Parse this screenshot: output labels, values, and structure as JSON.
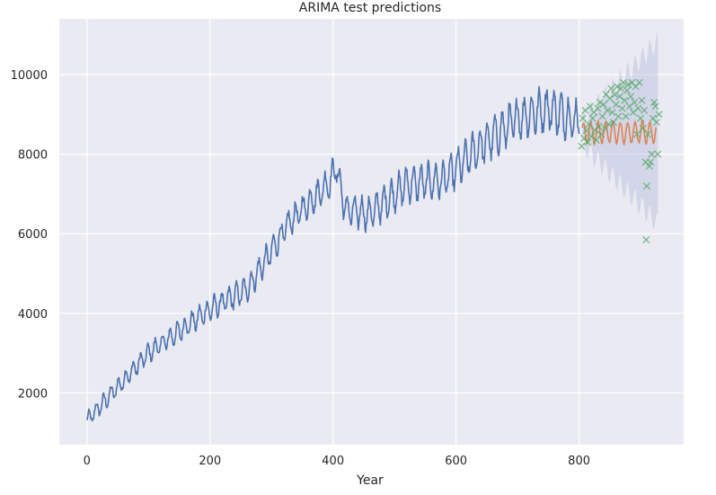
{
  "chart_data": {
    "type": "line",
    "title": "ARIMA test predictions",
    "xlabel": "Year",
    "ylabel": "",
    "xlim": [
      -45,
      970
    ],
    "ylim": [
      700,
      11400
    ],
    "x_ticks": [
      0,
      200,
      400,
      600,
      800
    ],
    "y_ticks": [
      2000,
      4000,
      6000,
      8000,
      10000
    ],
    "grid": true,
    "legend": "none",
    "colors": {
      "background": "#eaeaf2",
      "grid": "#ffffff",
      "history": "#4c72b0",
      "forecast": "#dd8452",
      "actual_test": "#55a868",
      "confidence_band": "#bfc5e0"
    },
    "series": [
      {
        "role": "history",
        "style": "line",
        "x_start": 0,
        "x_end": 800,
        "approx_trend": [
          [
            0,
            1300
          ],
          [
            100,
            3000
          ],
          [
            200,
            4100
          ],
          [
            260,
            4600
          ],
          [
            330,
            6300
          ],
          [
            395,
            7300
          ],
          [
            405,
            7700
          ],
          [
            420,
            6600
          ],
          [
            460,
            6500
          ],
          [
            520,
            7250
          ],
          [
            580,
            7350
          ],
          [
            640,
            8200
          ],
          [
            700,
            8900
          ],
          [
            750,
            9150
          ],
          [
            800,
            8800
          ]
        ],
        "seasonal_period": 12,
        "seasonal_amplitude_range": [
          180,
          500
        ]
      },
      {
        "role": "forecast",
        "style": "line",
        "x_start": 805,
        "x_end": 925,
        "approx_level": 8550,
        "seasonal_period": 12,
        "seasonal_amplitude_range": [
          220,
          320
        ]
      },
      {
        "role": "actual_test",
        "style": "x-markers",
        "points": [
          [
            804,
            8200
          ],
          [
            806,
            8900
          ],
          [
            808,
            8400
          ],
          [
            810,
            9100
          ],
          [
            812,
            8600
          ],
          [
            814,
            8300
          ],
          [
            816,
            8750
          ],
          [
            818,
            9200
          ],
          [
            820,
            8450
          ],
          [
            822,
            8900
          ],
          [
            824,
            9050
          ],
          [
            826,
            8600
          ],
          [
            828,
            8350
          ],
          [
            830,
            9150
          ],
          [
            832,
            8700
          ],
          [
            834,
            9300
          ],
          [
            836,
            8500
          ],
          [
            838,
            8950
          ],
          [
            840,
            9250
          ],
          [
            842,
            8650
          ],
          [
            844,
            9500
          ],
          [
            846,
            9100
          ],
          [
            848,
            8750
          ],
          [
            850,
            9400
          ],
          [
            852,
            9650
          ],
          [
            854,
            9050
          ],
          [
            856,
            8800
          ],
          [
            858,
            9500
          ],
          [
            860,
            9250
          ],
          [
            862,
            9700
          ],
          [
            864,
            8950
          ],
          [
            866,
            9450
          ],
          [
            868,
            9650
          ],
          [
            870,
            9150
          ],
          [
            872,
            9800
          ],
          [
            874,
            9350
          ],
          [
            876,
            8950
          ],
          [
            878,
            9600
          ],
          [
            880,
            9750
          ],
          [
            882,
            9200
          ],
          [
            884,
            9450
          ],
          [
            886,
            9800
          ],
          [
            888,
            9050
          ],
          [
            890,
            9300
          ],
          [
            892,
            9700
          ],
          [
            894,
            8500
          ],
          [
            896,
            9150
          ],
          [
            898,
            9800
          ],
          [
            900,
            8900
          ],
          [
            902,
            9350
          ],
          [
            904,
            8650
          ],
          [
            906,
            9100
          ],
          [
            908,
            7800
          ],
          [
            909,
            5850
          ],
          [
            910,
            7200
          ],
          [
            912,
            8500
          ],
          [
            914,
            7700
          ],
          [
            916,
            7800
          ],
          [
            918,
            8000
          ],
          [
            920,
            8900
          ],
          [
            922,
            9300
          ],
          [
            924,
            9200
          ],
          [
            926,
            8800
          ],
          [
            928,
            8000
          ],
          [
            930,
            9000
          ]
        ]
      },
      {
        "role": "confidence_band",
        "style": "band",
        "x_start": 805,
        "x_end": 928,
        "center": 8550,
        "halfwidth_start": 300,
        "halfwidth_end": 2300
      }
    ]
  }
}
